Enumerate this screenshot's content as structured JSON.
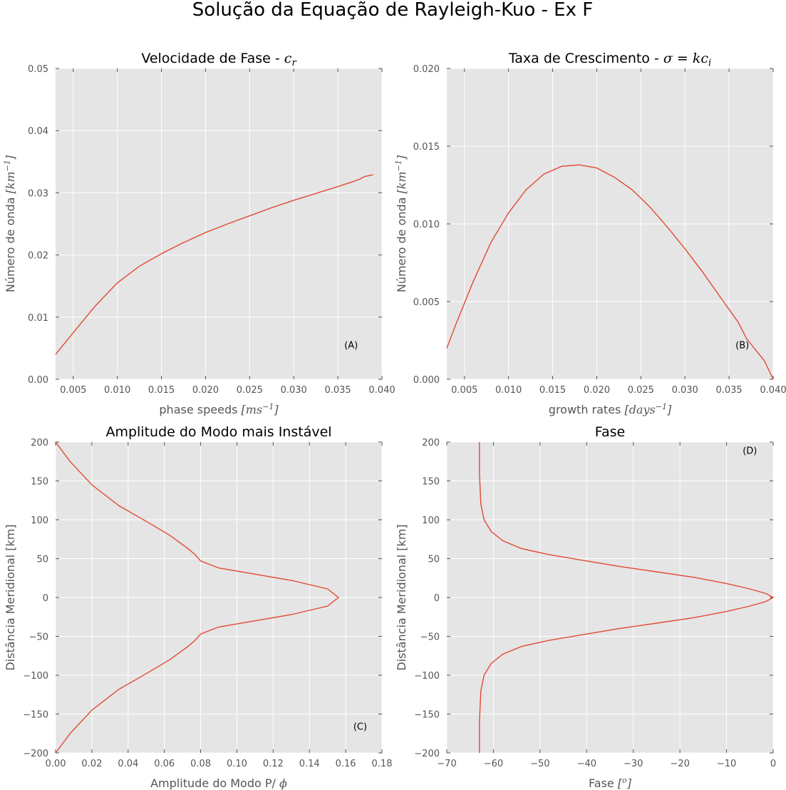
{
  "figure": {
    "title": "Solução da Equação de Rayleigh-Kuo - Ex F"
  },
  "colors": {
    "line": "#e24a33",
    "axes_bg": "#e5e5e5",
    "grid": "#ffffff",
    "text": "#555555"
  },
  "chart_data": [
    {
      "id": "A",
      "type": "line",
      "title": "Velocidade de Fase - ",
      "title_math": "c",
      "title_math_sub": "r",
      "xlabel": "phase speeds ",
      "xlabel_math": "[ms",
      "xlabel_math_sup": "−1",
      "xlabel_math_end": "]",
      "ylabel": "Número de onda ",
      "ylabel_math": "[km",
      "ylabel_math_sup": "−1",
      "ylabel_math_end": "]",
      "xlim": [
        0.003,
        0.04
      ],
      "ylim": [
        0,
        0.05
      ],
      "xticks": [
        0.005,
        0.01,
        0.015,
        0.02,
        0.025,
        0.03,
        0.035,
        0.04
      ],
      "xtick_labels": [
        "0.005",
        "0.010",
        "0.015",
        "0.020",
        "0.025",
        "0.030",
        "0.035",
        "0.040"
      ],
      "yticks": [
        0.0,
        0.01,
        0.02,
        0.03,
        0.04,
        0.05
      ],
      "ytick_labels": [
        "0.00",
        "0.01",
        "0.02",
        "0.03",
        "0.04",
        "0.05"
      ],
      "grid": true,
      "annotation": "(A)",
      "annotation_xy": [
        0.0365,
        0.005
      ],
      "series": [
        {
          "x": [
            0.003,
            0.005,
            0.0075,
            0.01,
            0.0125,
            0.015,
            0.0175,
            0.02,
            0.0225,
            0.025,
            0.0275,
            0.03,
            0.0325,
            0.035,
            0.0365,
            0.0375,
            0.038,
            0.039
          ],
          "y": [
            0.004,
            0.0075,
            0.0118,
            0.0155,
            0.0182,
            0.0202,
            0.022,
            0.0236,
            0.025,
            0.0263,
            0.0276,
            0.0288,
            0.0299,
            0.031,
            0.0317,
            0.0322,
            0.0326,
            0.0329
          ]
        }
      ]
    },
    {
      "id": "B",
      "type": "line",
      "title": "Taxa de Crescimento - ",
      "title_math": "σ = kc",
      "title_math_sub": "i",
      "xlabel": "growth rates ",
      "xlabel_math": "[days",
      "xlabel_math_sup": "−1",
      "xlabel_math_end": "]",
      "ylabel": "Número de onda ",
      "ylabel_math": "[km",
      "ylabel_math_sup": "−1",
      "ylabel_math_end": "]",
      "xlim": [
        0.003,
        0.04
      ],
      "ylim": [
        0,
        0.02
      ],
      "xticks": [
        0.005,
        0.01,
        0.015,
        0.02,
        0.025,
        0.03,
        0.035,
        0.04
      ],
      "xtick_labels": [
        "0.005",
        "0.010",
        "0.015",
        "0.020",
        "0.025",
        "0.030",
        "0.035",
        "0.040"
      ],
      "yticks": [
        0.0,
        0.005,
        0.01,
        0.015,
        0.02
      ],
      "ytick_labels": [
        "0.000",
        "0.005",
        "0.010",
        "0.015",
        "0.020"
      ],
      "grid": true,
      "annotation": "(B)",
      "annotation_xy": [
        0.0365,
        0.002
      ],
      "series": [
        {
          "x": [
            0.003,
            0.004,
            0.006,
            0.008,
            0.01,
            0.012,
            0.014,
            0.016,
            0.018,
            0.02,
            0.022,
            0.024,
            0.026,
            0.028,
            0.03,
            0.032,
            0.034,
            0.036,
            0.037,
            0.038,
            0.039,
            0.04
          ],
          "y": [
            0.002,
            0.0035,
            0.0063,
            0.0088,
            0.0107,
            0.0122,
            0.0132,
            0.0137,
            0.0138,
            0.0136,
            0.013,
            0.0122,
            0.0111,
            0.0098,
            0.0084,
            0.0069,
            0.0053,
            0.0037,
            0.0026,
            0.0019,
            0.0012,
            0.0
          ]
        }
      ]
    },
    {
      "id": "C",
      "type": "line",
      "title": "Amplitude do Modo mais Instável",
      "xlabel": "Amplitude do Modo P/ ",
      "xlabel_math": "ϕ",
      "ylabel": "Distância Meridional [km]",
      "xlim": [
        0,
        0.18
      ],
      "ylim": [
        -200,
        200
      ],
      "xticks": [
        0.0,
        0.02,
        0.04,
        0.06,
        0.08,
        0.1,
        0.12,
        0.14,
        0.16,
        0.18
      ],
      "xtick_labels": [
        "0.00",
        "0.02",
        "0.04",
        "0.06",
        "0.08",
        "0.10",
        "0.12",
        "0.14",
        "0.16",
        "0.18"
      ],
      "yticks": [
        -200,
        -150,
        -100,
        -50,
        0,
        50,
        100,
        150,
        200
      ],
      "ytick_labels": [
        "−200",
        "−150",
        "−100",
        "−50",
        "0",
        "50",
        "100",
        "150",
        "200"
      ],
      "grid": true,
      "annotation": "(C)",
      "annotation_xy": [
        0.168,
        -170
      ],
      "series": [
        {
          "x": [
            0.0,
            0.008,
            0.02,
            0.035,
            0.05,
            0.063,
            0.073,
            0.077,
            0.08,
            0.09,
            0.11,
            0.13,
            0.15,
            0.156,
            0.15,
            0.13,
            0.11,
            0.09,
            0.08,
            0.077,
            0.073,
            0.063,
            0.05,
            0.035,
            0.02,
            0.008,
            0.0
          ],
          "y": [
            200,
            175,
            145,
            118,
            98,
            80,
            63,
            55,
            47,
            38,
            30,
            22,
            11,
            0,
            -11,
            -22,
            -30,
            -38,
            -47,
            -55,
            -63,
            -80,
            -98,
            -118,
            -145,
            -175,
            -200
          ]
        }
      ]
    },
    {
      "id": "D",
      "type": "line",
      "title": "Fase",
      "xlabel": "Fase ",
      "xlabel_math": "[",
      "xlabel_math_sup": "o",
      "xlabel_math_end": "]",
      "ylabel": "Distância Meridional [km]",
      "xlim": [
        -70,
        0
      ],
      "ylim": [
        -200,
        200
      ],
      "xticks": [
        -70,
        -60,
        -50,
        -40,
        -30,
        -20,
        -10,
        0
      ],
      "xtick_labels": [
        "−70",
        "−60",
        "−50",
        "−40",
        "−30",
        "−20",
        "−10",
        "0"
      ],
      "yticks": [
        -200,
        -150,
        -100,
        -50,
        0,
        50,
        100,
        150,
        200
      ],
      "ytick_labels": [
        "−200",
        "−150",
        "−100",
        "−50",
        "0",
        "50",
        "100",
        "150",
        "200"
      ],
      "grid": true,
      "annotation": "(D)",
      "annotation_xy": [
        -5,
        185
      ],
      "series": [
        {
          "x": [
            -63.0,
            -63.0,
            -62.7,
            -62.0,
            -60.5,
            -58.0,
            -54.0,
            -48.0,
            -41.0,
            -33.0,
            -25.0,
            -17.0,
            -10.0,
            -5.0,
            -1.5,
            0.0,
            -1.5,
            -5.0,
            -10.0,
            -17.0,
            -25.0,
            -33.0,
            -41.0,
            -48.0,
            -54.0,
            -58.0,
            -60.5,
            -62.0,
            -62.7,
            -63.0,
            -63.0
          ],
          "y": [
            200,
            160,
            120,
            100,
            85,
            73,
            63,
            55,
            48,
            40,
            33,
            26,
            18,
            11,
            5,
            0,
            -5,
            -11,
            -18,
            -26,
            -33,
            -40,
            -48,
            -55,
            -63,
            -73,
            -85,
            -100,
            -120,
            -160,
            -200
          ]
        }
      ]
    }
  ]
}
